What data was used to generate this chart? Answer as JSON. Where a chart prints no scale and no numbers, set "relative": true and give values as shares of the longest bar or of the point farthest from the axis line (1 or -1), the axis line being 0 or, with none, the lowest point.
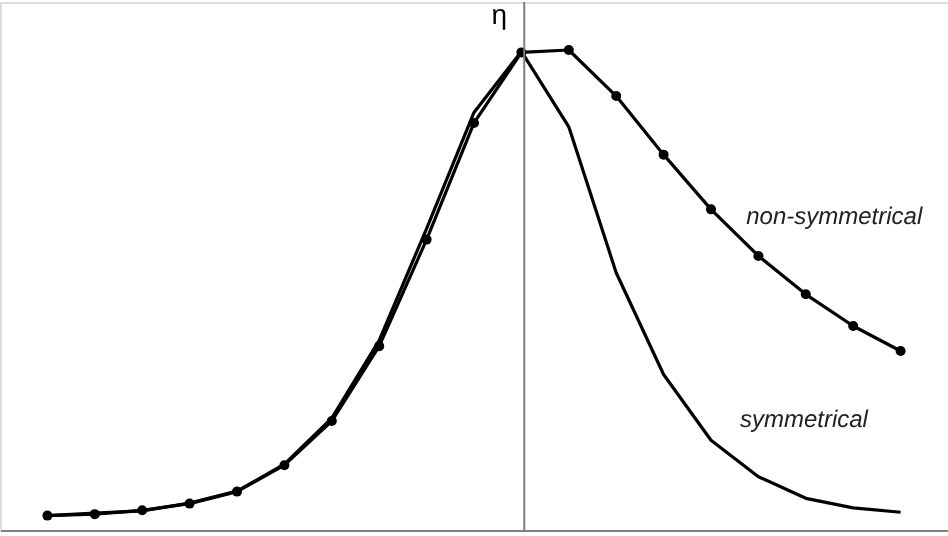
{
  "chart_data": {
    "type": "line",
    "relative": true,
    "ylabel": "η",
    "tick_labels": false,
    "grid": false,
    "legend": false,
    "line_style": "solid",
    "categories": [
      null,
      null,
      null,
      null,
      null,
      null,
      null,
      null,
      null,
      null,
      null,
      null,
      null,
      null,
      null,
      null,
      null,
      null,
      null
    ],
    "series": [
      {
        "name": "non-symmetrical",
        "color": "#000000",
        "marker": "circle",
        "values": [
          0.03,
          0.033,
          0.041,
          0.055,
          0.08,
          0.135,
          0.227,
          0.383,
          0.605,
          0.848,
          0.995,
          1,
          0.904,
          0.782,
          0.668,
          0.571,
          0.491,
          0.425,
          0.373
        ]
      },
      {
        "name": "symmetrical",
        "color": "#000000",
        "marker": "none",
        "values": [
          0.03,
          0.035,
          0.04,
          0.056,
          0.081,
          0.137,
          0.233,
          0.395,
          0.628,
          0.87,
          0.997,
          0.84,
          0.536,
          0.324,
          0.187,
          0.111,
          0.066,
          0.046,
          0.037
        ]
      }
    ]
  }
}
